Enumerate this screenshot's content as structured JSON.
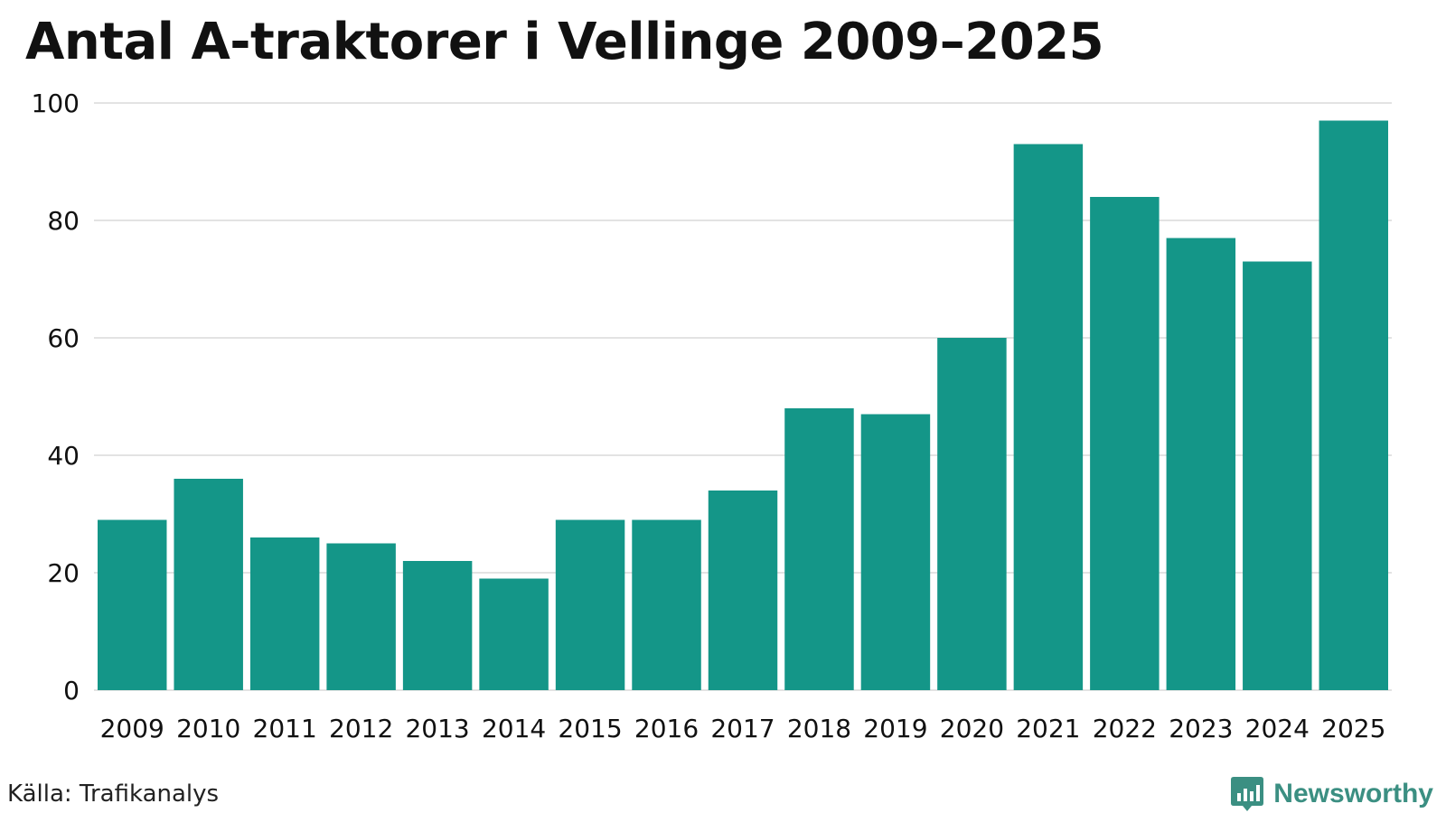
{
  "chart_data": {
    "type": "bar",
    "title": "Antal A-traktorer i Vellinge 2009–2025",
    "xlabel": "",
    "ylabel": "",
    "categories": [
      "2009",
      "2010",
      "2011",
      "2012",
      "2013",
      "2014",
      "2015",
      "2016",
      "2017",
      "2018",
      "2019",
      "2020",
      "2021",
      "2022",
      "2023",
      "2024",
      "2025"
    ],
    "values": [
      29,
      36,
      26,
      25,
      22,
      19,
      29,
      29,
      34,
      48,
      47,
      60,
      93,
      84,
      77,
      73,
      97
    ],
    "ylim": [
      0,
      100
    ],
    "yticks": [
      0,
      20,
      40,
      60,
      80,
      100
    ],
    "grid": true,
    "legend": "none"
  },
  "footer": {
    "source": "Källa: Trafikanalys",
    "brand": "Newsworthy"
  },
  "colors": {
    "bar": "#149688",
    "grid": "#e3e3e3",
    "brand": "#3b8f82"
  }
}
